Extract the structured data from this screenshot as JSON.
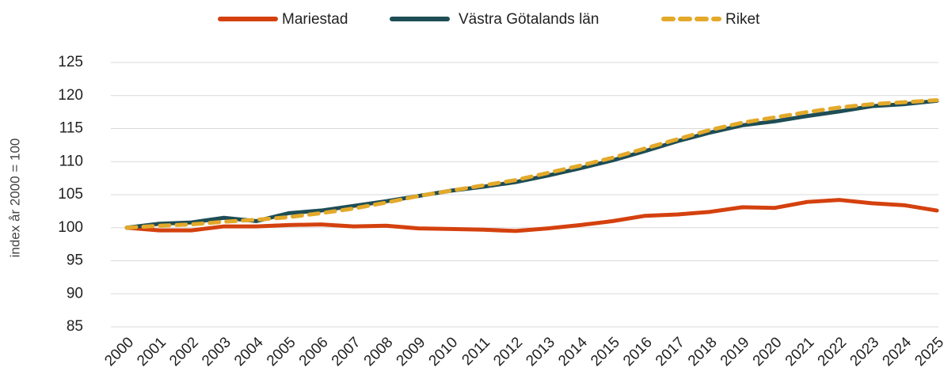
{
  "chart_data": {
    "type": "line",
    "ylabel": "index år 2000 = 100",
    "categories": [
      "2000",
      "2001",
      "2002",
      "2003",
      "2004",
      "2005",
      "2006",
      "2007",
      "2008",
      "2009",
      "2010",
      "2011",
      "2012",
      "2013",
      "2014",
      "2015",
      "2016",
      "2017",
      "2018",
      "2019",
      "2020",
      "2021",
      "2022",
      "2023",
      "2024",
      "2025"
    ],
    "series": [
      {
        "name": "Mariestad",
        "color": "#d4410e",
        "dash": false,
        "values": [
          100,
          99.6,
          99.6,
          100.2,
          100.2,
          100.4,
          100.5,
          100.2,
          100.3,
          99.9,
          99.8,
          99.7,
          99.5,
          99.9,
          100.4,
          101.0,
          101.8,
          102.0,
          102.4,
          103.1,
          103.0,
          103.9,
          104.2,
          103.7,
          103.4,
          102.6
        ]
      },
      {
        "name": "Västra Götalands län",
        "color": "#1e4d55",
        "dash": false,
        "values": [
          100,
          100.6,
          100.8,
          101.5,
          101.0,
          102.2,
          102.6,
          103.3,
          104.0,
          104.8,
          105.6,
          106.2,
          106.9,
          107.9,
          109.0,
          110.2,
          111.6,
          113.1,
          114.4,
          115.5,
          116.1,
          116.9,
          117.6,
          118.4,
          118.7,
          119.2
        ]
      },
      {
        "name": "Riket",
        "color": "#e3a92a",
        "dash": true,
        "values": [
          100,
          100.3,
          100.5,
          100.9,
          101.2,
          101.6,
          102.2,
          102.9,
          103.8,
          104.8,
          105.6,
          106.4,
          107.2,
          108.3,
          109.4,
          110.6,
          112.0,
          113.4,
          114.8,
          115.9,
          116.7,
          117.5,
          118.2,
          118.7,
          119.0,
          119.3
        ]
      }
    ],
    "ylim": [
      85,
      125
    ],
    "yticks": [
      85,
      90,
      95,
      100,
      105,
      110,
      115,
      120,
      125
    ],
    "grid": true
  }
}
